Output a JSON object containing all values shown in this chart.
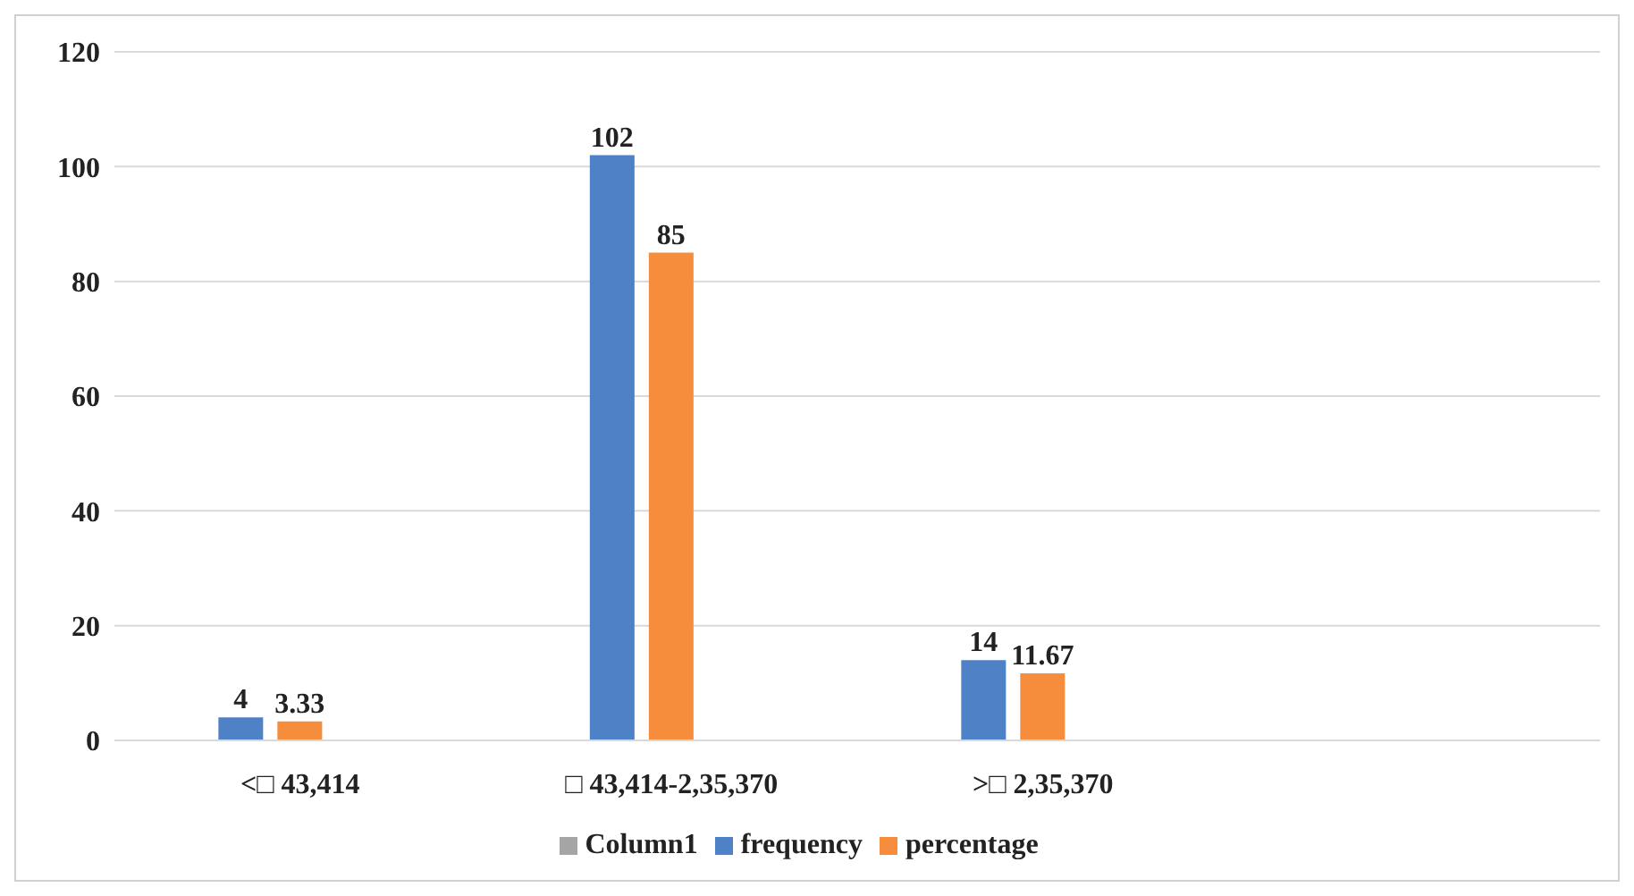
{
  "chart_data": {
    "type": "bar",
    "categories": [
      "<□ 43,414",
      "□ 43,414-2,35,370",
      ">□ 2,35,370",
      null
    ],
    "series": [
      {
        "name": "frequency",
        "color": "#4f81c7",
        "values": [
          4,
          102,
          14,
          null
        ]
      },
      {
        "name": "percentage",
        "color": "#f58d3c",
        "values": [
          3.33,
          85,
          11.67,
          null
        ]
      },
      {
        "name": "Column1",
        "color": "#a5a5a5",
        "values": [
          null,
          null,
          null,
          null
        ]
      }
    ],
    "ylim": [
      0,
      120
    ],
    "yticks": [
      0,
      20,
      40,
      60,
      80,
      100,
      120
    ],
    "grid": "y",
    "legend": "bottom",
    "data_labels": true
  }
}
